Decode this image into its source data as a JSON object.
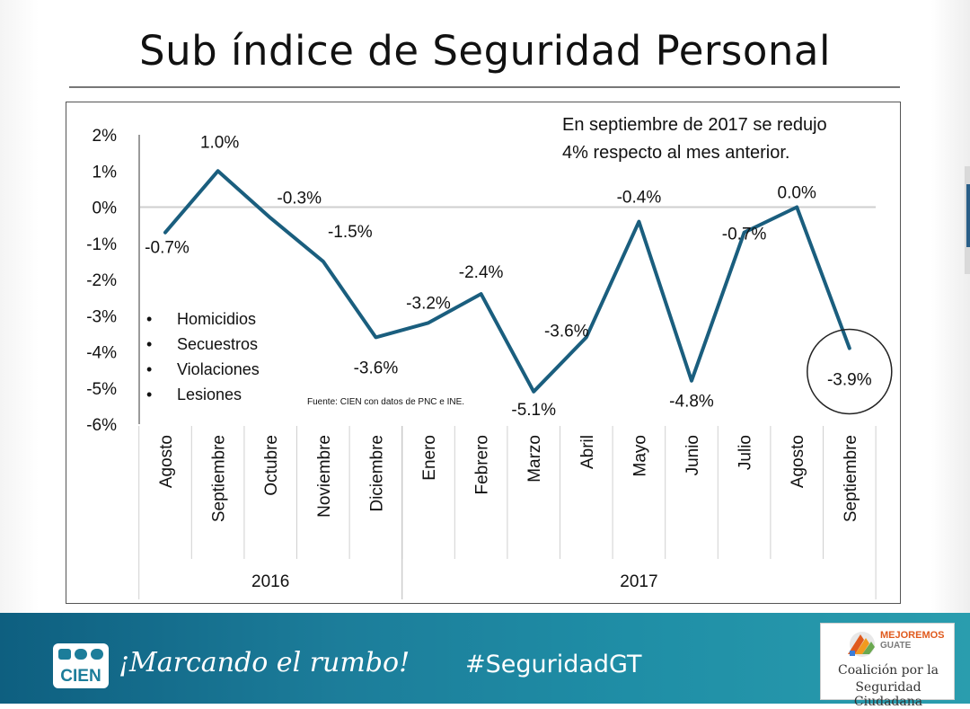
{
  "title": "Sub índice de Seguridad Personal",
  "annotation_lines": [
    "En septiembre de 2017 se redujo",
    "4% respecto al mes anterior."
  ],
  "bullets": [
    "Homicidios",
    "Secuestros",
    "Violaciones",
    "Lesiones"
  ],
  "source": "Fuente: CIEN con datos de PNC e INE.",
  "footer": {
    "logo_text": "CIEN",
    "tagline": "¡Marcando el rumbo!",
    "hashtag": "#SeguridadGT",
    "partner_brand_line1": "MEJOREMOS",
    "partner_brand_line2": "GUATE",
    "partner_name_line1": "Coalición por la",
    "partner_name_line2": "Seguridad Ciudadana"
  },
  "colors": {
    "line": "#1a5e7e",
    "footer": "#1c7d9a"
  },
  "chart_data": {
    "type": "line",
    "title": "Sub índice de Seguridad Personal",
    "categories": [
      "Agosto",
      "Septiembre",
      "Octubre",
      "Noviembre",
      "Diciembre",
      "Enero",
      "Febrero",
      "Marzo",
      "Abril",
      "Mayo",
      "Junio",
      "Julio",
      "Agosto",
      "Septiembre"
    ],
    "years": [
      {
        "label": "2016",
        "count": 5
      },
      {
        "label": "2017",
        "count": 9
      }
    ],
    "series": [
      {
        "name": "Sub índice de Seguridad Personal",
        "values": [
          -0.7,
          1.0,
          -0.3,
          -1.5,
          -3.6,
          -3.2,
          -2.4,
          -5.1,
          -3.6,
          -0.4,
          -4.8,
          -0.7,
          0.0,
          -3.9
        ]
      }
    ],
    "data_labels": [
      "-0.7%",
      "1.0%",
      "-0.3%",
      "-1.5%",
      "-3.6%",
      "-3.2%",
      "-2.4%",
      "-5.1%",
      "-3.6%",
      "-0.4%",
      "-4.8%",
      "-0.7%",
      "0.0%",
      "-3.9%"
    ],
    "y_ticks": [
      2,
      1,
      0,
      -1,
      -2,
      -3,
      -4,
      -5,
      -6
    ],
    "y_tick_labels": [
      "2%",
      "1%",
      "0%",
      "-1%",
      "-2%",
      "-3%",
      "-4%",
      "-5%",
      "-6%"
    ],
    "ylim": [
      -6,
      2
    ],
    "highlight_index": 13
  }
}
